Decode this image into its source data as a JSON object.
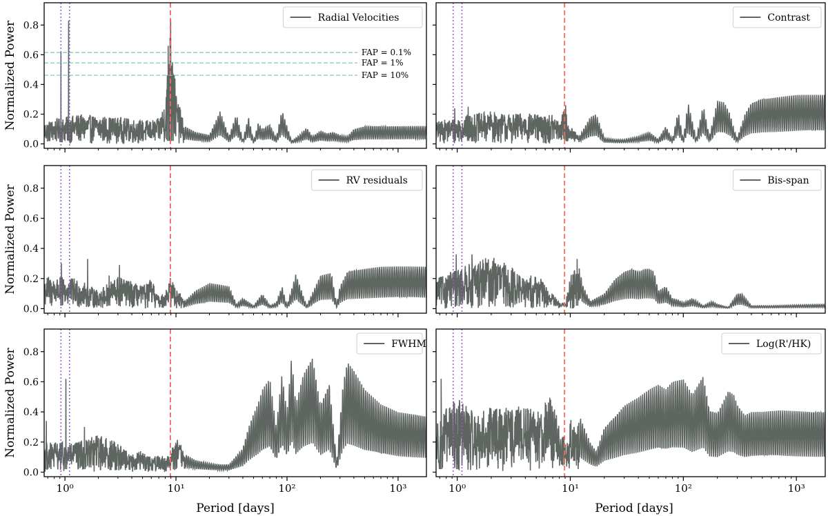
{
  "figure": {
    "ylabel": "Normalized Power",
    "xlabel": "Period [days]"
  },
  "chart_data": [
    {
      "type": "line",
      "legend": "Radial Velocities",
      "xscale": "log",
      "xlim": [
        0.65,
        1800
      ],
      "ylim": [
        -0.03,
        0.95
      ],
      "yticks": [
        0.0,
        0.2,
        0.4,
        0.6,
        0.8
      ],
      "ytick_labels": [
        "0.0",
        "0.2",
        "0.4",
        "0.6",
        "0.8"
      ],
      "xticks": [
        1,
        10,
        100,
        1000
      ],
      "show_xticklabels": false,
      "show_ylabel": true,
      "show_yticklabels": true,
      "fap_lines": [
        {
          "label": "FAP = 0.1%",
          "y": 0.615
        },
        {
          "label": "FAP = 1%",
          "y": 0.545
        },
        {
          "label": "FAP = 10%",
          "y": 0.462
        }
      ],
      "peaks": [
        {
          "x": 0.92,
          "y": 0.62
        },
        {
          "x": 1.08,
          "y": 0.83
        },
        {
          "x": 8.5,
          "y": 0.66
        },
        {
          "x": 8.95,
          "y": 0.84
        },
        {
          "x": 9.3,
          "y": 0.55
        }
      ],
      "envelope": {
        "x": [
          0.65,
          1.3,
          2,
          3,
          4,
          5,
          6,
          7,
          8,
          9,
          10,
          12,
          15,
          20,
          25,
          30,
          35,
          40,
          45,
          50,
          55,
          60,
          70,
          80,
          90,
          110,
          130,
          150,
          170,
          200,
          230,
          260,
          300,
          350,
          400,
          500,
          700,
          1000,
          1800
        ],
        "y": [
          0.15,
          0.2,
          0.19,
          0.18,
          0.17,
          0.16,
          0.16,
          0.17,
          0.3,
          0.84,
          0.35,
          0.12,
          0.08,
          0.06,
          0.22,
          0.05,
          0.2,
          0.03,
          0.18,
          0.02,
          0.14,
          0.1,
          0.13,
          0.04,
          0.23,
          0.02,
          0.06,
          0.11,
          0.05,
          0.09,
          0.07,
          0.08,
          0.06,
          0.05,
          0.1,
          0.12,
          0.12,
          0.12,
          0.12
        ]
      }
    },
    {
      "type": "line",
      "legend": "Contrast",
      "xscale": "log",
      "xlim": [
        0.65,
        1800
      ],
      "ylim": [
        -0.03,
        0.95
      ],
      "yticks": [
        0.0,
        0.2,
        0.4,
        0.6,
        0.8
      ],
      "ytick_labels": [
        "0.0",
        "0.2",
        "0.4",
        "0.6",
        "0.8"
      ],
      "xticks": [
        1,
        10,
        100,
        1000
      ],
      "show_xticklabels": false,
      "show_ylabel": false,
      "show_yticklabels": false,
      "fap_lines": [],
      "peaks": [
        {
          "x": 0.95,
          "y": 0.24
        },
        {
          "x": 1.25,
          "y": 0.25
        },
        {
          "x": 9.1,
          "y": 0.26
        }
      ],
      "envelope": {
        "x": [
          0.65,
          1.3,
          2,
          3,
          4,
          5,
          6,
          7,
          8,
          9,
          10,
          12,
          15,
          17,
          20,
          25,
          30,
          40,
          50,
          60,
          70,
          80,
          90,
          100,
          110,
          130,
          150,
          170,
          200,
          230,
          260,
          280,
          300,
          350,
          400,
          500,
          700,
          1000,
          1800
        ],
        "y": [
          0.15,
          0.2,
          0.22,
          0.2,
          0.21,
          0.2,
          0.19,
          0.2,
          0.15,
          0.26,
          0.12,
          0.05,
          0.18,
          0.2,
          0.04,
          0.03,
          0.03,
          0.05,
          0.08,
          0.03,
          0.12,
          0.03,
          0.22,
          0.03,
          0.28,
          0.04,
          0.26,
          0.05,
          0.29,
          0.28,
          0.2,
          0.1,
          0.04,
          0.2,
          0.28,
          0.31,
          0.32,
          0.33,
          0.33
        ]
      }
    },
    {
      "type": "line",
      "legend": "RV residuals",
      "xscale": "log",
      "xlim": [
        0.65,
        1800
      ],
      "ylim": [
        -0.03,
        0.95
      ],
      "yticks": [
        0.0,
        0.2,
        0.4,
        0.6,
        0.8
      ],
      "ytick_labels": [
        "0.0",
        "0.2",
        "0.4",
        "0.6",
        "0.8"
      ],
      "xticks": [
        1,
        10,
        100,
        1000
      ],
      "show_xticklabels": false,
      "show_ylabel": true,
      "show_yticklabels": true,
      "fap_lines": [],
      "peaks": [
        {
          "x": 0.93,
          "y": 0.3
        },
        {
          "x": 1.6,
          "y": 0.33
        },
        {
          "x": 3.1,
          "y": 0.29
        },
        {
          "x": 2.5,
          "y": 0.22
        }
      ],
      "envelope": {
        "x": [
          0.65,
          1.3,
          2,
          3,
          4,
          5,
          6,
          7,
          8,
          9,
          10,
          12,
          15,
          18,
          20,
          25,
          30,
          35,
          40,
          50,
          60,
          70,
          80,
          90,
          100,
          120,
          150,
          200,
          250,
          280,
          300,
          350,
          400,
          500,
          700,
          1000,
          1800
        ],
        "y": [
          0.22,
          0.2,
          0.12,
          0.22,
          0.18,
          0.15,
          0.2,
          0.08,
          0.12,
          0.22,
          0.15,
          0.05,
          0.12,
          0.15,
          0.17,
          0.16,
          0.15,
          0.03,
          0.07,
          0.02,
          0.1,
          0.02,
          0.04,
          0.15,
          0.02,
          0.23,
          0.02,
          0.22,
          0.24,
          0.03,
          0.15,
          0.25,
          0.26,
          0.27,
          0.28,
          0.28,
          0.28
        ]
      }
    },
    {
      "type": "line",
      "legend": "Bis-span",
      "xscale": "log",
      "xlim": [
        0.65,
        1800
      ],
      "ylim": [
        -0.03,
        0.95
      ],
      "yticks": [
        0.0,
        0.2,
        0.4,
        0.6,
        0.8
      ],
      "ytick_labels": [
        "0.0",
        "0.2",
        "0.4",
        "0.6",
        "0.8"
      ],
      "xticks": [
        1,
        10,
        100,
        1000
      ],
      "show_xticklabels": false,
      "show_ylabel": false,
      "show_yticklabels": false,
      "fap_lines": [],
      "peaks": [
        {
          "x": 0.98,
          "y": 0.36
        },
        {
          "x": 1.35,
          "y": 0.36
        },
        {
          "x": 11.5,
          "y": 0.33
        }
      ],
      "envelope": {
        "x": [
          0.65,
          1.3,
          2,
          3,
          4,
          5,
          6,
          7,
          8,
          9,
          10,
          11.5,
          13,
          15,
          20,
          25,
          30,
          35,
          40,
          45,
          50,
          55,
          60,
          70,
          80,
          90,
          100,
          120,
          150,
          180,
          200,
          250,
          300,
          330,
          400,
          600,
          1000,
          1800
        ],
        "y": [
          0.2,
          0.3,
          0.35,
          0.28,
          0.2,
          0.24,
          0.16,
          0.1,
          0.04,
          0.04,
          0.22,
          0.33,
          0.15,
          0.05,
          0.1,
          0.2,
          0.25,
          0.27,
          0.25,
          0.27,
          0.27,
          0.25,
          0.12,
          0.15,
          0.07,
          0.06,
          0.04,
          0.07,
          0.02,
          0.05,
          0.03,
          0.01,
          0.1,
          0.1,
          0.02,
          0.02,
          0.025,
          0.03
        ]
      }
    },
    {
      "type": "line",
      "legend": "FWHM",
      "xscale": "log",
      "xlim": [
        0.65,
        1800
      ],
      "ylim": [
        -0.03,
        0.95
      ],
      "yticks": [
        0.0,
        0.2,
        0.4,
        0.6,
        0.8
      ],
      "ytick_labels": [
        "0.0",
        "0.2",
        "0.4",
        "0.6",
        "0.8"
      ],
      "xticks": [
        1,
        10,
        100,
        1000
      ],
      "xtick_labels": [
        "10⁰",
        "10¹",
        "10²",
        "10³"
      ],
      "show_xticklabels": true,
      "show_ylabel": true,
      "show_yticklabels": true,
      "fap_lines": [],
      "peaks": [
        {
          "x": 1.02,
          "y": 0.62
        },
        {
          "x": 0.68,
          "y": 0.34
        },
        {
          "x": 1.5,
          "y": 0.3
        }
      ],
      "envelope": {
        "x": [
          0.65,
          1.3,
          2,
          3,
          4,
          5,
          6,
          7,
          8,
          9,
          10,
          12,
          15,
          20,
          25,
          30,
          40,
          45,
          50,
          55,
          60,
          70,
          80,
          90,
          100,
          110,
          120,
          140,
          170,
          200,
          240,
          280,
          320,
          350,
          400,
          500,
          700,
          1000,
          1800
        ],
        "y": [
          0.2,
          0.2,
          0.25,
          0.2,
          0.12,
          0.15,
          0.1,
          0.12,
          0.1,
          0.14,
          0.25,
          0.12,
          0.08,
          0.06,
          0.05,
          0.05,
          0.16,
          0.3,
          0.39,
          0.46,
          0.55,
          0.62,
          0.3,
          0.65,
          0.4,
          0.77,
          0.45,
          0.65,
          0.77,
          0.45,
          0.6,
          0.07,
          0.6,
          0.74,
          0.68,
          0.55,
          0.45,
          0.4,
          0.38
        ]
      }
    },
    {
      "type": "line",
      "legend": "Log(R'/HK)",
      "xscale": "log",
      "xlim": [
        0.65,
        1800
      ],
      "ylim": [
        -0.03,
        0.95
      ],
      "yticks": [
        0.0,
        0.2,
        0.4,
        0.6,
        0.8
      ],
      "ytick_labels": [
        "0.0",
        "0.2",
        "0.4",
        "0.6",
        "0.8"
      ],
      "xticks": [
        1,
        10,
        100,
        1000
      ],
      "xtick_labels": [
        "10⁰",
        "10¹",
        "10²",
        "10³"
      ],
      "show_xticklabels": true,
      "show_ylabel": false,
      "show_yticklabels": false,
      "fap_lines": [],
      "peaks": [
        {
          "x": 0.72,
          "y": 0.62
        },
        {
          "x": 1.0,
          "y": 0.05
        }
      ],
      "envelope": {
        "x": [
          0.65,
          1.0,
          1.5,
          2,
          3,
          4,
          5,
          6,
          7,
          8,
          9,
          10,
          12,
          15,
          17,
          20,
          25,
          30,
          40,
          50,
          60,
          70,
          80,
          100,
          120,
          150,
          170,
          200,
          250,
          280,
          300,
          350,
          400,
          500,
          700,
          1000,
          1800
        ],
        "y": [
          0.35,
          0.5,
          0.38,
          0.45,
          0.42,
          0.45,
          0.4,
          0.52,
          0.48,
          0.3,
          0.22,
          0.35,
          0.38,
          0.2,
          0.14,
          0.3,
          0.38,
          0.45,
          0.5,
          0.55,
          0.58,
          0.55,
          0.6,
          0.62,
          0.52,
          0.65,
          0.42,
          0.4,
          0.55,
          0.52,
          0.45,
          0.38,
          0.4,
          0.4,
          0.41,
          0.41,
          0.41
        ]
      }
    }
  ],
  "markers": {
    "planet_period": 8.9,
    "alias_periods": [
      0.92,
      1.1
    ],
    "planet_color": "#f26b5b",
    "alias_color": "#9b59d0",
    "fap_color": "#6fc7b6",
    "line_color": "#5f6661"
  }
}
